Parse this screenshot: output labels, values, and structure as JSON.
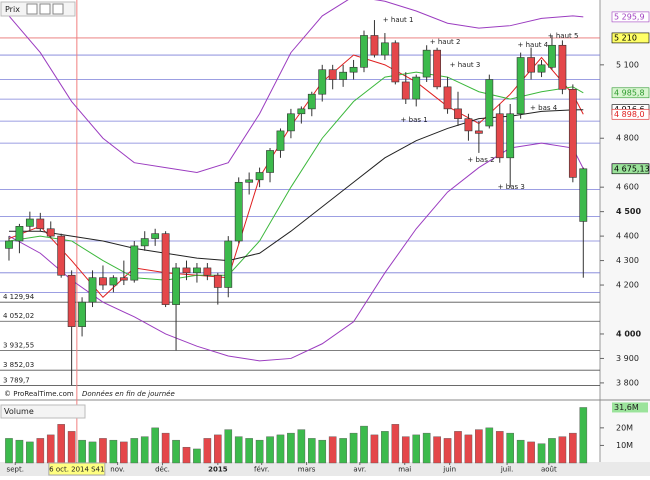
{
  "chart_data": {
    "type": "candlestick",
    "panel_label": "Prix",
    "credit": "© ProRealTime.com",
    "note": "Données en fin de journée",
    "xlim": [
      -0.86,
      56.6
    ],
    "ylim": [
      3771,
      5365
    ],
    "up_color": "#3cba4c",
    "down_color": "#e4474a",
    "open": [
      4350,
      4380,
      4440,
      4470,
      4430,
      4400,
      4240,
      4030,
      4130,
      4230,
      4200,
      4230,
      4220,
      4360,
      4390,
      4410,
      4120,
      4270,
      4250,
      4270,
      4240,
      4190,
      4380,
      4620,
      4630,
      4660,
      4750,
      4830,
      4900,
      4920,
      4980,
      5080,
      5040,
      5070,
      5090,
      5220,
      5140,
      5190,
      5030,
      4960,
      5050,
      5160,
      5010,
      4920,
      4880,
      4830,
      4850,
      4900,
      4720,
      4900,
      5130,
      5070,
      5090,
      5180,
      5000,
      4460
    ],
    "high": [
      4400,
      4450,
      4500,
      4495,
      4460,
      4410,
      4260,
      4150,
      4260,
      4280,
      4240,
      4300,
      4380,
      4420,
      4430,
      4420,
      4290,
      4300,
      4290,
      4290,
      4250,
      4400,
      4640,
      4660,
      4680,
      4760,
      4840,
      4920,
      4930,
      4990,
      5100,
      5100,
      5100,
      5120,
      5240,
      5283,
      5230,
      5200,
      5070,
      5060,
      5180,
      5170,
      5050,
      4990,
      4900,
      4870,
      5060,
      4940,
      4940,
      5150,
      5170,
      5120,
      5220,
      5200,
      5020,
      4680
    ],
    "low": [
      4300,
      4330,
      4420,
      4420,
      4390,
      4230,
      3789.7,
      3990,
      4110,
      4180,
      4170,
      4200,
      4210,
      4340,
      4360,
      4110,
      3932.55,
      4220,
      4210,
      4220,
      4120,
      4150,
      4370,
      4570,
      4600,
      4620,
      4720,
      4800,
      4860,
      4890,
      4950,
      5000,
      5010,
      5040,
      5070,
      5130,
      5120,
      5020,
      4940,
      4930,
      5030,
      5000,
      4900,
      4850,
      4790,
      4740,
      4840,
      4700,
      4600,
      4880,
      5040,
      5050,
      5080,
      4980,
      4620,
      4230
    ],
    "close": [
      4380,
      4440,
      4470,
      4430,
      4400,
      4240,
      4030,
      4130,
      4230,
      4200,
      4230,
      4220,
      4360,
      4390,
      4410,
      4120,
      4270,
      4250,
      4270,
      4240,
      4190,
      4380,
      4620,
      4630,
      4660,
      4750,
      4830,
      4900,
      4920,
      4980,
      5080,
      5040,
      5070,
      5090,
      5220,
      5140,
      5190,
      5030,
      4960,
      5050,
      5160,
      5010,
      4920,
      4880,
      4830,
      4820,
      5040,
      4720,
      4900,
      5130,
      5070,
      5100,
      5180,
      5000,
      4640,
      4675.13
    ],
    "xticks": [
      {
        "value": 0.6,
        "label": "sept."
      },
      {
        "value": 6.5,
        "label": "6 oct. 2014 S41",
        "highlight": true
      },
      {
        "value": 10.4,
        "label": "nov."
      },
      {
        "value": 14.7,
        "label": "déc."
      },
      {
        "value": 20.0,
        "label": "2015",
        "bold": true
      },
      {
        "value": 24.2,
        "label": "févr."
      },
      {
        "value": 28.5,
        "label": "mars"
      },
      {
        "value": 33.6,
        "label": "avr."
      },
      {
        "value": 37.9,
        "label": "mai"
      },
      {
        "value": 42.2,
        "label": "juin"
      },
      {
        "value": 47.7,
        "label": "juil."
      },
      {
        "value": 51.7,
        "label": "août"
      }
    ],
    "yticks": [
      {
        "value": 5100,
        "label": "5 100"
      },
      {
        "value": 4800,
        "label": "4 800"
      },
      {
        "value": 4600,
        "label": "4 600"
      },
      {
        "value": 4500,
        "label": "4 500",
        "bold": true
      },
      {
        "value": 4400,
        "label": "4 400"
      },
      {
        "value": 4300,
        "label": "4 300"
      },
      {
        "value": 4200,
        "label": "4 200"
      },
      {
        "value": 4000,
        "label": "4 000",
        "bold": true
      },
      {
        "value": 3900,
        "label": "3 900"
      },
      {
        "value": 3800,
        "label": "3 800"
      }
    ],
    "markers": [
      {
        "value": 5295.9,
        "label": "5 295,9",
        "color": "#a040c0",
        "fill": "#ffffff"
      },
      {
        "value": 5210,
        "label": "5 210",
        "color": "#000000",
        "fill": "#ffff66"
      },
      {
        "value": 4985.8,
        "label": "4 985,8",
        "color": "#2e9a2e",
        "fill": "#d8f5d0"
      },
      {
        "value": 4916.6,
        "label": "4 916,6",
        "color": "#000000",
        "fill": "#ffffff"
      },
      {
        "value": 4898.0,
        "label": "4 898,0",
        "color": "#e02020",
        "fill": "#ffffff"
      },
      {
        "value": 4675.7,
        "label": "4 675,7",
        "color": "#a040c0",
        "fill": "#ffffff"
      },
      {
        "value": 4675.13,
        "label": "4 675,13",
        "color": "#000000",
        "fill": "#9be39b"
      }
    ],
    "levels": [
      5210,
      5140,
      5040,
      4960,
      4870,
      4780,
      4590,
      4480,
      4380,
      4250,
      4170
    ],
    "level_color": "#7b7fd8",
    "top_level_color": "#e87070",
    "labeled_levels": [
      {
        "value": 4129.94,
        "label": "4 129,94"
      },
      {
        "value": 4052.02,
        "label": "4 052,02"
      },
      {
        "value": 3932.55,
        "label": "3 932,55"
      },
      {
        "value": 3852.03,
        "label": "3 852,03"
      },
      {
        "value": 3789.7,
        "label": "3 789,7"
      }
    ],
    "overlays": [
      {
        "color": "#9b3cc0",
        "x": [
          0,
          3,
          6,
          9,
          12,
          15,
          18,
          21,
          24,
          27,
          30,
          33,
          36,
          39,
          42,
          45,
          48,
          51,
          54,
          55
        ],
        "values": [
          5300,
          5150,
          4950,
          4800,
          4700,
          4680,
          4660,
          4700,
          4900,
          5150,
          5300,
          5380,
          5360,
          5320,
          5270,
          5250,
          5260,
          5290,
          5300,
          5295.9
        ]
      },
      {
        "color": "#9b3cc0",
        "x": [
          0,
          3,
          6,
          9,
          12,
          15,
          18,
          21,
          24,
          27,
          30,
          33,
          36,
          39,
          42,
          45,
          48,
          51,
          54,
          55
        ],
        "values": [
          4400,
          4330,
          4220,
          4130,
          4070,
          4000,
          3950,
          3910,
          3890,
          3900,
          3960,
          4050,
          4250,
          4430,
          4580,
          4680,
          4760,
          4780,
          4760,
          4675.7
        ]
      },
      {
        "color": "#e02020",
        "x": [
          0,
          3,
          6,
          9,
          12,
          15,
          18,
          21,
          24,
          27,
          30,
          33,
          36,
          39,
          42,
          45,
          48,
          51,
          54,
          55
        ],
        "values": [
          4390,
          4440,
          4300,
          4150,
          4270,
          4250,
          4240,
          4230,
          4640,
          4850,
          5030,
          5140,
          5100,
          5030,
          4930,
          4860,
          4980,
          5130,
          4980,
          4898.0
        ]
      },
      {
        "color": "#3cb83c",
        "x": [
          0,
          3,
          6,
          9,
          12,
          15,
          18,
          21,
          24,
          27,
          30,
          33,
          36,
          39,
          42,
          45,
          48,
          51,
          54,
          55
        ],
        "values": [
          4380,
          4400,
          4380,
          4300,
          4230,
          4220,
          4240,
          4240,
          4380,
          4600,
          4800,
          4950,
          5050,
          5070,
          5050,
          4990,
          4960,
          4990,
          5010,
          4985.8
        ]
      },
      {
        "color": "#222222",
        "x": [
          0,
          3,
          6,
          9,
          12,
          15,
          18,
          21,
          24,
          27,
          30,
          33,
          36,
          39,
          42,
          45,
          48,
          51,
          54,
          55
        ],
        "values": [
          4420,
          4420,
          4400,
          4380,
          4350,
          4330,
          4310,
          4300,
          4330,
          4420,
          4520,
          4620,
          4720,
          4790,
          4840,
          4880,
          4890,
          4910,
          4916,
          4916.6
        ]
      }
    ],
    "annotations": [
      {
        "text": "+ haut 1",
        "x": 35.8,
        "y": 5283
      },
      {
        "text": "+ bas 1",
        "x": 37.5,
        "y": 4875
      },
      {
        "text": "+ haut 2",
        "x": 40.3,
        "y": 5194
      },
      {
        "text": "+ haut 3",
        "x": 42.2,
        "y": 5100
      },
      {
        "text": "+ bas 2",
        "x": 43.9,
        "y": 4711
      },
      {
        "text": "+ bas 3",
        "x": 46.8,
        "y": 4601
      },
      {
        "text": "+ haut 4",
        "x": 48.7,
        "y": 5181
      },
      {
        "text": "+ bas 4",
        "x": 49.9,
        "y": 4924
      },
      {
        "text": "+ haut 5",
        "x": 51.6,
        "y": 5218
      }
    ],
    "volume": {
      "title": "Volume",
      "ylim": [
        0,
        33
      ],
      "yticks": [
        {
          "value": 20,
          "label": "20M"
        },
        {
          "value": 10,
          "label": "10M"
        }
      ],
      "marker": {
        "value": 31.6,
        "label": "31,6M",
        "fill": "#9be39b"
      },
      "values": [
        14,
        13,
        12,
        14,
        16,
        22,
        18,
        13,
        12,
        14,
        13,
        12,
        14,
        15,
        20,
        17,
        13,
        9,
        8,
        14,
        16,
        19,
        15,
        14,
        13,
        15,
        16,
        17,
        19,
        14,
        13,
        15,
        14,
        17,
        21,
        16,
        18,
        22,
        15,
        16,
        17,
        15,
        14,
        18,
        16,
        19,
        20,
        18,
        17,
        13,
        12,
        11,
        14,
        15,
        17,
        31.6
      ]
    }
  }
}
